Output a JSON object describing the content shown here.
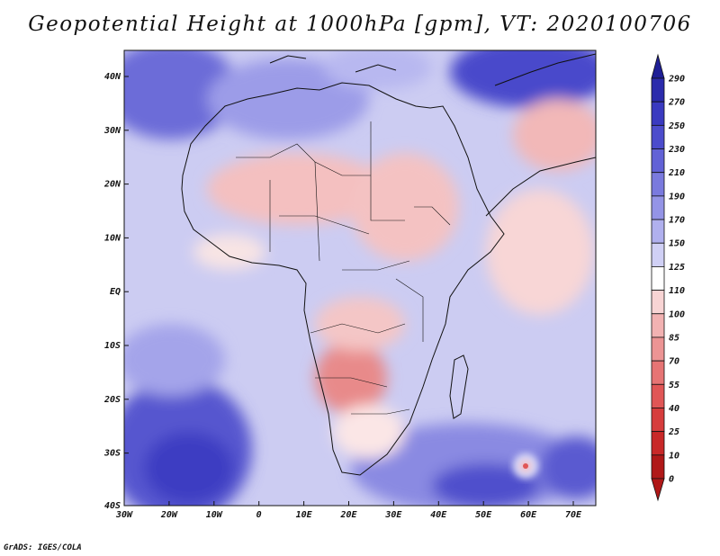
{
  "title": "Geopotential Height at 1000hPa [gpm], VT: 2020100706",
  "credit": "GrADS: IGES/COLA",
  "map": {
    "region": "Africa",
    "lat_ticks": [
      "40N",
      "30N",
      "20N",
      "10N",
      "EQ",
      "10S",
      "20S",
      "30S",
      "40S"
    ],
    "lon_ticks": [
      "30W",
      "20W",
      "10W",
      "0",
      "10E",
      "20E",
      "30E",
      "40E",
      "50E",
      "60E",
      "70E"
    ]
  },
  "colorbar": {
    "levels": [
      "290",
      "270",
      "250",
      "230",
      "210",
      "190",
      "170",
      "150",
      "125",
      "110",
      "100",
      "85",
      "70",
      "55",
      "40",
      "25",
      "10",
      "0"
    ],
    "colors": [
      "#1f1f96",
      "#2b2bac",
      "#3a3ac0",
      "#4c4ccc",
      "#6262d6",
      "#7a7ade",
      "#9494e6",
      "#b0b0ee",
      "#d0d0f5",
      "#ffffff",
      "#f8d4d4",
      "#f2b2b2",
      "#ec9494",
      "#e67474",
      "#e05656",
      "#d63c3c",
      "#c82828",
      "#b01818"
    ]
  }
}
